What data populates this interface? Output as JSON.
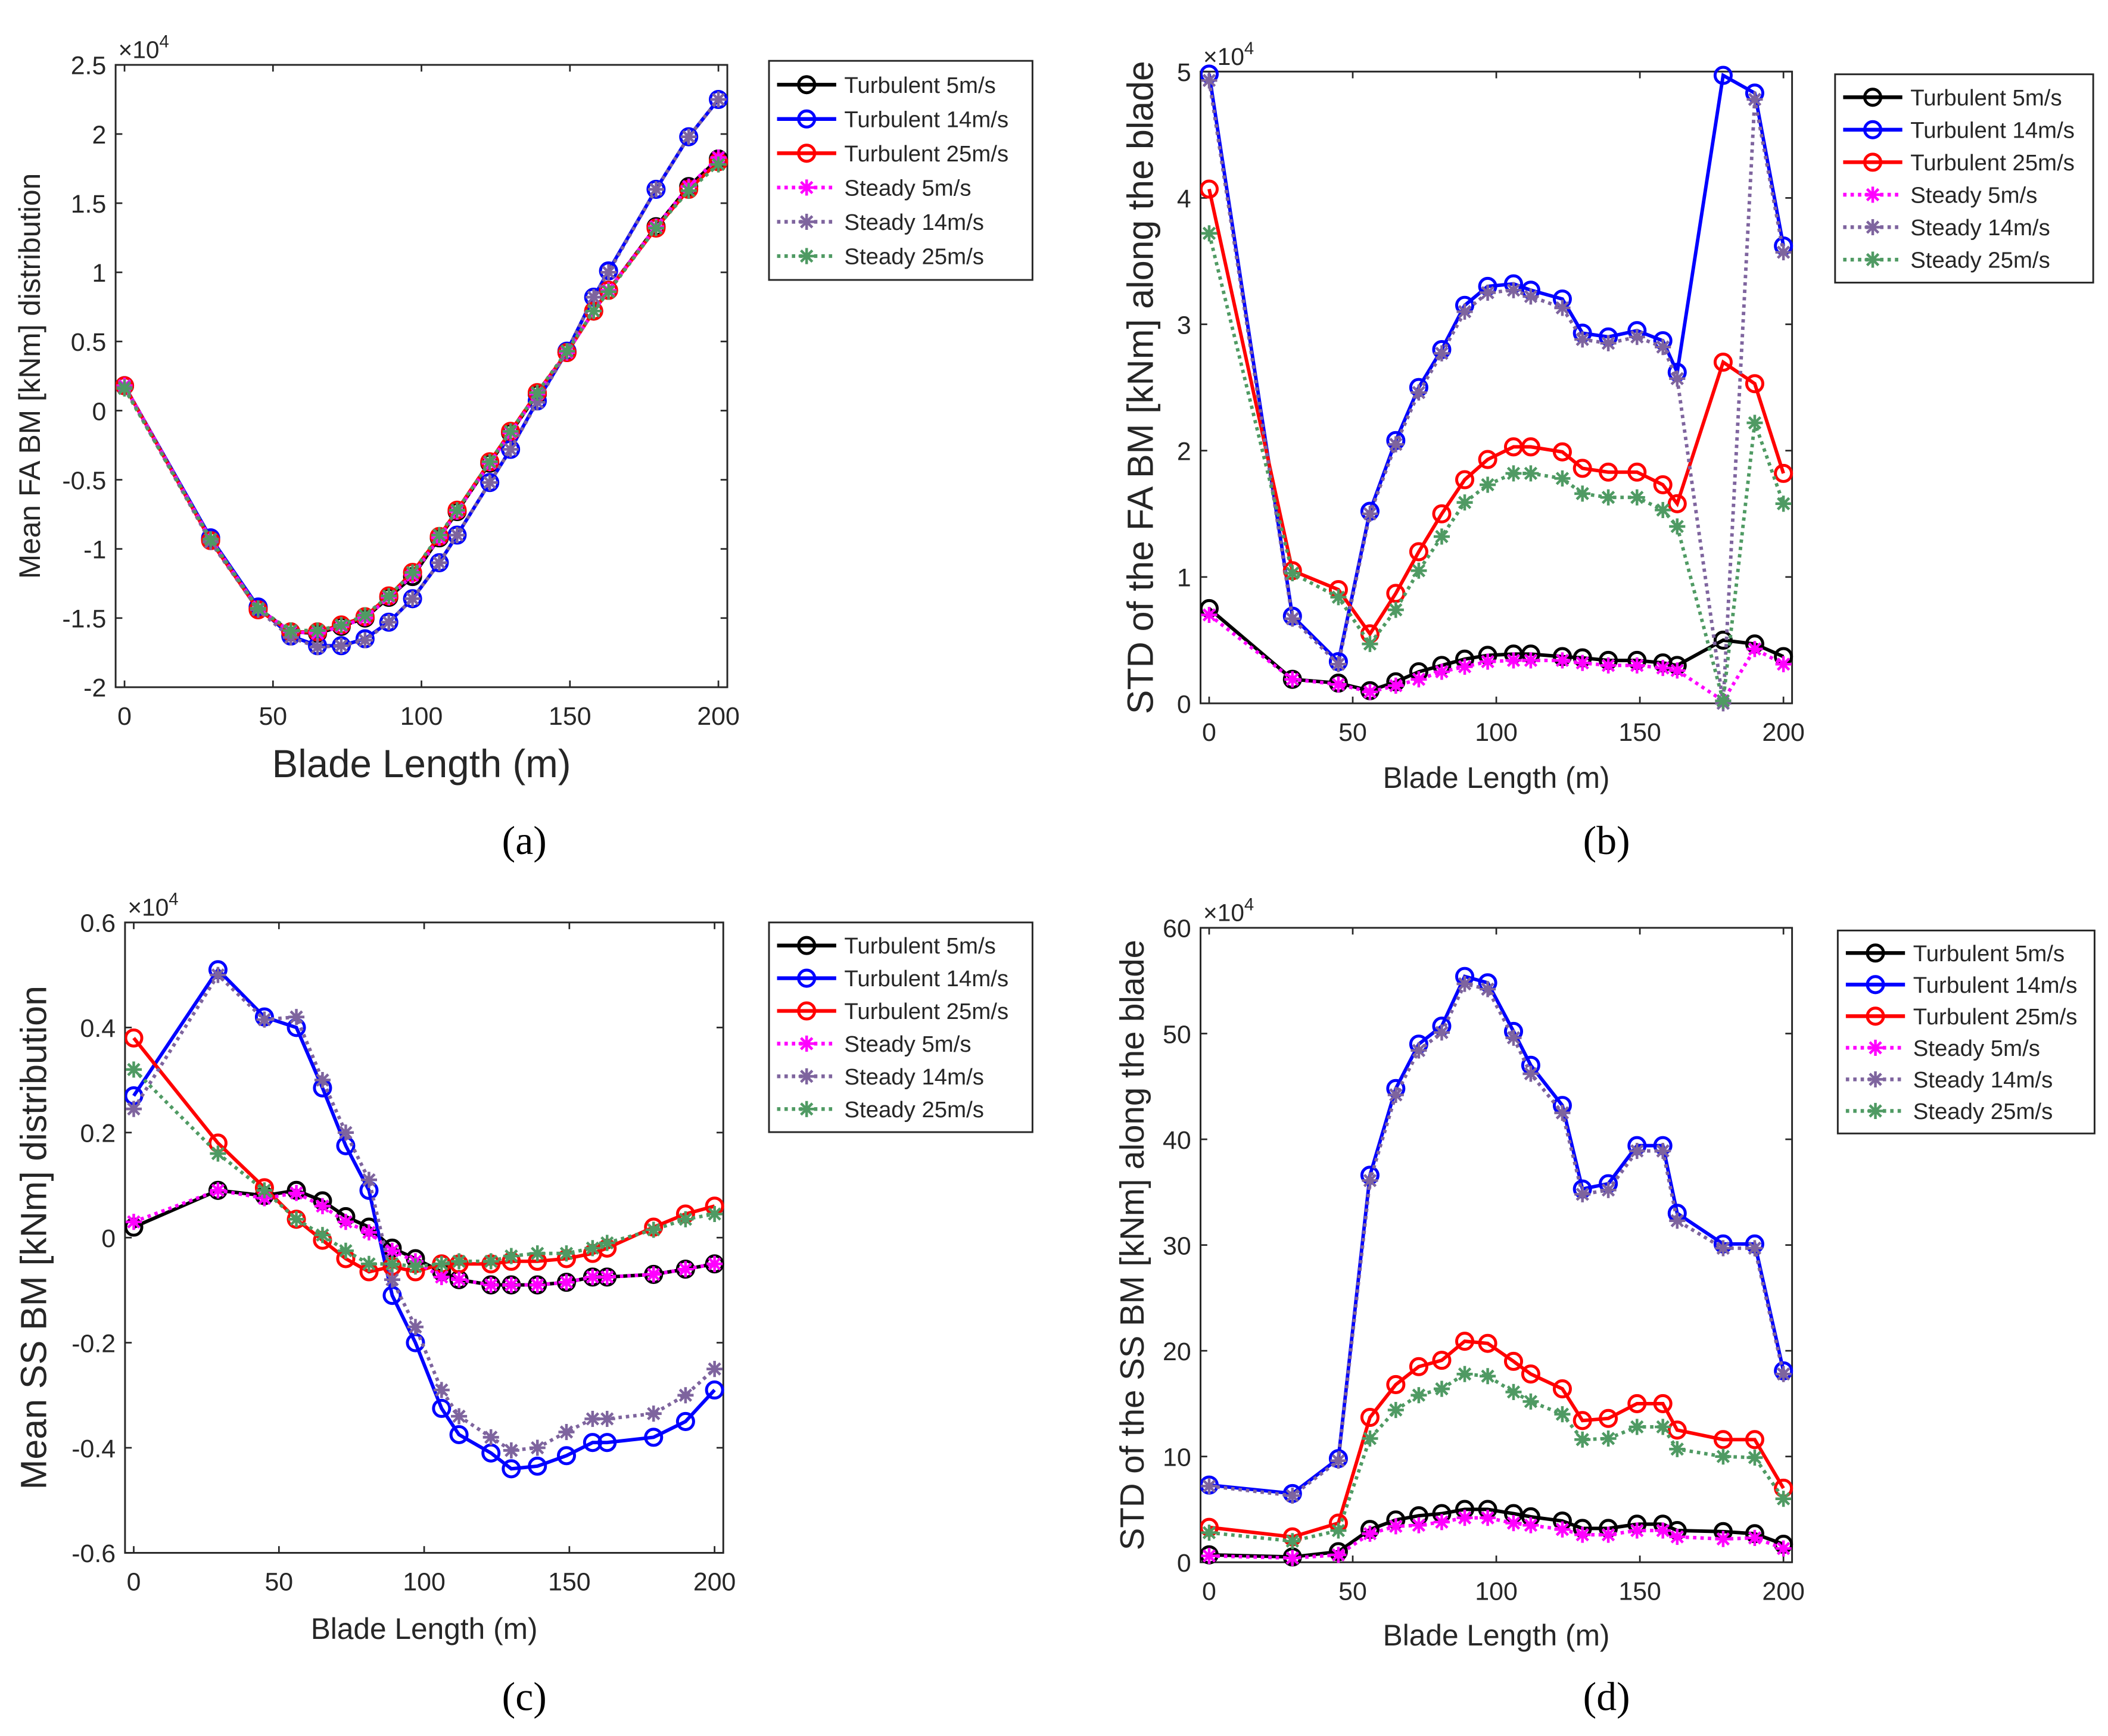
{
  "legend_entries": [
    "Turbulent 5m/s",
    "Turbulent 14m/s",
    "Turbulent 25m/s",
    "Steady 5m/s",
    "Steady 14m/s",
    "Steady 25m/s"
  ],
  "chart_data": [
    {
      "type": "line",
      "caption": "(a)",
      "title": "",
      "xlabel": "Blade Length (m)",
      "ylabel": "Mean FA BM [kNm] distribution",
      "exponent_base": "×10",
      "exponent_power": "4",
      "xlim": [
        -3,
        203
      ],
      "ylim": [
        -2,
        2.5
      ],
      "xticks": [
        0,
        50,
        100,
        150,
        200
      ],
      "xtick_labels": [
        "0",
        "50",
        "100",
        "150",
        "200"
      ],
      "yticks": [
        -2,
        -1.5,
        -1,
        -0.5,
        0,
        0.5,
        1,
        1.5,
        2,
        2.5
      ],
      "ytick_labels": [
        "-2",
        "-1.5",
        "-1",
        "-0.5",
        "0",
        "0.5",
        "1",
        "1.5",
        "2",
        "2.5"
      ],
      "legend_position": "outside-right-top",
      "grid": false,
      "x": [
        0,
        29,
        45,
        56,
        65,
        73,
        81,
        89,
        97,
        106,
        112,
        123,
        130,
        139,
        149,
        158,
        163,
        179,
        190,
        200
      ],
      "series": [
        {
          "name": "Turbulent 5m/s",
          "color": "#000000",
          "marker": "circle",
          "linestyle": "solid",
          "values": [
            0.18,
            -0.93,
            -1.43,
            -1.6,
            -1.61,
            -1.56,
            -1.5,
            -1.35,
            -1.2,
            -0.92,
            -0.73,
            -0.38,
            -0.16,
            0.12,
            0.42,
            0.72,
            0.87,
            1.33,
            1.62,
            1.82
          ]
        },
        {
          "name": "Turbulent 14m/s",
          "color": "#0000ff",
          "marker": "circle",
          "linestyle": "solid",
          "values": [
            0.18,
            -0.92,
            -1.42,
            -1.63,
            -1.7,
            -1.7,
            -1.65,
            -1.53,
            -1.36,
            -1.1,
            -0.9,
            -0.52,
            -0.28,
            0.07,
            0.43,
            0.82,
            1.01,
            1.6,
            1.98,
            2.25
          ]
        },
        {
          "name": "Turbulent 25m/s",
          "color": "#ff0000",
          "marker": "circle",
          "linestyle": "solid",
          "values": [
            0.18,
            -0.94,
            -1.44,
            -1.6,
            -1.6,
            -1.55,
            -1.49,
            -1.34,
            -1.17,
            -0.91,
            -0.72,
            -0.37,
            -0.15,
            0.13,
            0.42,
            0.72,
            0.87,
            1.32,
            1.6,
            1.8
          ]
        },
        {
          "name": "Steady 5m/s",
          "color": "#ff00ff",
          "marker": "asterisk",
          "linestyle": "dotted",
          "values": [
            0.18,
            -0.93,
            -1.43,
            -1.6,
            -1.61,
            -1.56,
            -1.5,
            -1.35,
            -1.19,
            -0.92,
            -0.73,
            -0.38,
            -0.16,
            0.12,
            0.42,
            0.72,
            0.87,
            1.33,
            1.62,
            1.83
          ]
        },
        {
          "name": "Steady 14m/s",
          "color": "#7e649e",
          "marker": "asterisk",
          "linestyle": "dotted",
          "values": [
            0.17,
            -0.95,
            -1.44,
            -1.64,
            -1.71,
            -1.7,
            -1.66,
            -1.53,
            -1.36,
            -1.1,
            -0.9,
            -0.52,
            -0.28,
            0.06,
            0.43,
            0.82,
            1.0,
            1.6,
            1.98,
            2.25
          ]
        },
        {
          "name": "Steady 25m/s",
          "color": "#4f9a63",
          "marker": "asterisk",
          "linestyle": "dotted",
          "values": [
            0.16,
            -0.93,
            -1.43,
            -1.59,
            -1.59,
            -1.55,
            -1.48,
            -1.34,
            -1.17,
            -0.9,
            -0.72,
            -0.37,
            -0.15,
            0.13,
            0.43,
            0.72,
            0.86,
            1.32,
            1.59,
            1.78
          ]
        }
      ]
    },
    {
      "type": "line",
      "caption": "(b)",
      "title": "",
      "xlabel": "Blade Length (m)",
      "ylabel": "STD of the FA BM [kNm] along the blade",
      "exponent_base": "×10",
      "exponent_power": "4",
      "xlim": [
        -3,
        203
      ],
      "ylim": [
        0,
        5
      ],
      "xticks": [
        0,
        50,
        100,
        150,
        200
      ],
      "xtick_labels": [
        "0",
        "50",
        "100",
        "150",
        "200"
      ],
      "yticks": [
        0,
        1,
        2,
        3,
        4,
        5
      ],
      "ytick_labels": [
        "0",
        "1",
        "2",
        "3",
        "4",
        "5"
      ],
      "legend_position": "outside-right-top",
      "grid": false,
      "x": [
        0,
        29,
        45,
        56,
        65,
        73,
        81,
        89,
        97,
        106,
        112,
        123,
        130,
        139,
        149,
        158,
        163,
        179,
        190,
        200
      ],
      "series": [
        {
          "name": "Turbulent 5m/s",
          "color": "#000000",
          "marker": "circle",
          "linestyle": "solid",
          "values": [
            0.75,
            0.19,
            0.16,
            0.1,
            0.17,
            0.25,
            0.3,
            0.35,
            0.38,
            0.39,
            0.39,
            0.37,
            0.36,
            0.34,
            0.34,
            0.32,
            0.3,
            0.5,
            0.47,
            0.37
          ]
        },
        {
          "name": "Turbulent 14m/s",
          "color": "#0000ff",
          "marker": "circle",
          "linestyle": "solid",
          "values": [
            4.98,
            0.69,
            0.33,
            1.52,
            2.08,
            2.5,
            2.8,
            3.15,
            3.3,
            3.32,
            3.27,
            3.2,
            2.93,
            2.9,
            2.95,
            2.87,
            2.62,
            4.97,
            4.83,
            3.62
          ]
        },
        {
          "name": "Turbulent 25m/s",
          "color": "#ff0000",
          "marker": "circle",
          "linestyle": "solid",
          "values": [
            4.07,
            1.05,
            0.9,
            0.55,
            0.87,
            1.2,
            1.5,
            1.77,
            1.93,
            2.03,
            2.03,
            1.99,
            1.86,
            1.83,
            1.83,
            1.73,
            1.58,
            2.7,
            2.53,
            1.82
          ]
        },
        {
          "name": "Steady 5m/s",
          "color": "#ff00ff",
          "marker": "asterisk",
          "linestyle": "dotted",
          "values": [
            0.7,
            0.19,
            0.15,
            0.09,
            0.14,
            0.19,
            0.25,
            0.29,
            0.33,
            0.34,
            0.34,
            0.34,
            0.32,
            0.3,
            0.3,
            0.28,
            0.26,
            0.02,
            0.43,
            0.31
          ]
        },
        {
          "name": "Steady 14m/s",
          "color": "#7e649e",
          "marker": "asterisk",
          "linestyle": "dotted",
          "values": [
            4.93,
            0.67,
            0.31,
            1.5,
            2.05,
            2.46,
            2.77,
            3.1,
            3.25,
            3.27,
            3.22,
            3.13,
            2.88,
            2.85,
            2.9,
            2.82,
            2.57,
            0.0,
            4.78,
            3.57
          ]
        },
        {
          "name": "Steady 25m/s",
          "color": "#4f9a63",
          "marker": "asterisk",
          "linestyle": "dotted",
          "values": [
            3.72,
            1.03,
            0.84,
            0.47,
            0.74,
            1.05,
            1.32,
            1.59,
            1.73,
            1.82,
            1.82,
            1.78,
            1.66,
            1.63,
            1.63,
            1.53,
            1.4,
            0.02,
            2.22,
            1.58
          ]
        }
      ]
    },
    {
      "type": "line",
      "caption": "(c)",
      "title": "",
      "xlabel": "Blade Length (m)",
      "ylabel": "Mean SS BM [kNm] distribution",
      "exponent_base": "×10",
      "exponent_power": "4",
      "xlim": [
        -3,
        203
      ],
      "ylim": [
        -0.6,
        0.6
      ],
      "xticks": [
        0,
        50,
        100,
        150,
        200
      ],
      "xtick_labels": [
        "0",
        "50",
        "100",
        "150",
        "200"
      ],
      "yticks": [
        -0.6,
        -0.4,
        -0.2,
        0,
        0.2,
        0.4,
        0.6
      ],
      "ytick_labels": [
        "-0.6",
        "-0.4",
        "-0.2",
        "0",
        "0.2",
        "0.4",
        "0.6"
      ],
      "legend_position": "outside-right-top",
      "grid": false,
      "x": [
        0,
        29,
        45,
        56,
        65,
        73,
        81,
        89,
        97,
        106,
        112,
        123,
        130,
        139,
        149,
        158,
        163,
        179,
        190,
        200
      ],
      "series": [
        {
          "name": "Turbulent 5m/s",
          "color": "#000000",
          "marker": "circle",
          "linestyle": "solid",
          "values": [
            0.02,
            0.09,
            0.08,
            0.09,
            0.07,
            0.04,
            0.02,
            -0.02,
            -0.04,
            -0.065,
            -0.08,
            -0.09,
            -0.09,
            -0.09,
            -0.085,
            -0.075,
            -0.075,
            -0.07,
            -0.06,
            -0.05
          ]
        },
        {
          "name": "Turbulent 14m/s",
          "color": "#0000ff",
          "marker": "circle",
          "linestyle": "solid",
          "values": [
            0.27,
            0.51,
            0.42,
            0.4,
            0.285,
            0.175,
            0.09,
            -0.11,
            -0.2,
            -0.325,
            -0.375,
            -0.41,
            -0.44,
            -0.435,
            -0.415,
            -0.39,
            -0.39,
            -0.38,
            -0.35,
            -0.29
          ]
        },
        {
          "name": "Turbulent 25m/s",
          "color": "#ff0000",
          "marker": "circle",
          "linestyle": "solid",
          "values": [
            0.38,
            0.18,
            0.095,
            0.035,
            -0.005,
            -0.04,
            -0.065,
            -0.055,
            -0.065,
            -0.05,
            -0.05,
            -0.05,
            -0.045,
            -0.045,
            -0.04,
            -0.03,
            -0.02,
            0.02,
            0.045,
            0.06
          ]
        },
        {
          "name": "Steady 5m/s",
          "color": "#ff00ff",
          "marker": "asterisk",
          "linestyle": "dotted",
          "values": [
            0.03,
            0.09,
            0.075,
            0.085,
            0.06,
            0.03,
            0.01,
            -0.025,
            -0.045,
            -0.075,
            -0.08,
            -0.09,
            -0.09,
            -0.09,
            -0.085,
            -0.075,
            -0.075,
            -0.07,
            -0.06,
            -0.05
          ]
        },
        {
          "name": "Steady 14m/s",
          "color": "#7e649e",
          "marker": "asterisk",
          "linestyle": "dotted",
          "values": [
            0.245,
            0.5,
            0.415,
            0.42,
            0.3,
            0.2,
            0.11,
            -0.08,
            -0.17,
            -0.29,
            -0.34,
            -0.38,
            -0.405,
            -0.4,
            -0.37,
            -0.345,
            -0.345,
            -0.335,
            -0.3,
            -0.25
          ]
        },
        {
          "name": "Steady 25m/s",
          "color": "#4f9a63",
          "marker": "asterisk",
          "linestyle": "dotted",
          "values": [
            0.32,
            0.16,
            0.09,
            0.035,
            0.005,
            -0.025,
            -0.05,
            -0.05,
            -0.055,
            -0.05,
            -0.045,
            -0.045,
            -0.035,
            -0.03,
            -0.03,
            -0.02,
            -0.01,
            0.015,
            0.035,
            0.045
          ]
        }
      ]
    },
    {
      "type": "line",
      "caption": "(d)",
      "title": "",
      "xlabel": "Blade Length (m)",
      "ylabel": "STD of the SS BM [kNm] along the blade",
      "exponent_base": "×10",
      "exponent_power": "4",
      "xlim": [
        -3,
        203
      ],
      "ylim": [
        0,
        60
      ],
      "xticks": [
        0,
        50,
        100,
        150,
        200
      ],
      "xtick_labels": [
        "0",
        "50",
        "100",
        "150",
        "200"
      ],
      "yticks": [
        0,
        10,
        20,
        30,
        40,
        50,
        60
      ],
      "ytick_labels": [
        "0",
        "10",
        "20",
        "30",
        "40",
        "50",
        "60"
      ],
      "legend_position": "outside-right-top",
      "grid": false,
      "x": [
        0,
        29,
        45,
        56,
        65,
        73,
        81,
        89,
        97,
        106,
        112,
        123,
        130,
        139,
        149,
        158,
        163,
        179,
        190,
        200
      ],
      "series": [
        {
          "name": "Turbulent 5m/s",
          "color": "#000000",
          "marker": "circle",
          "linestyle": "solid",
          "values": [
            0.7,
            0.5,
            1.0,
            3.1,
            4.0,
            4.4,
            4.6,
            5.0,
            5.0,
            4.6,
            4.3,
            3.9,
            3.2,
            3.2,
            3.6,
            3.6,
            3.0,
            2.9,
            2.7,
            1.7
          ]
        },
        {
          "name": "Turbulent 14m/s",
          "color": "#0000ff",
          "marker": "circle",
          "linestyle": "solid",
          "values": [
            7.3,
            6.5,
            9.8,
            36.6,
            44.8,
            49.0,
            50.7,
            55.4,
            54.8,
            50.2,
            47.0,
            43.2,
            35.3,
            35.8,
            39.4,
            39.4,
            33.0,
            30.1,
            30.1,
            18.1
          ]
        },
        {
          "name": "Turbulent 25m/s",
          "color": "#ff0000",
          "marker": "circle",
          "linestyle": "solid",
          "values": [
            3.3,
            2.4,
            3.7,
            13.7,
            16.8,
            18.5,
            19.1,
            20.9,
            20.7,
            19.0,
            17.8,
            16.4,
            13.4,
            13.6,
            15.0,
            15.0,
            12.5,
            11.6,
            11.6,
            7.0
          ]
        },
        {
          "name": "Steady 5m/s",
          "color": "#ff00ff",
          "marker": "asterisk",
          "linestyle": "dotted",
          "values": [
            0.6,
            0.4,
            0.7,
            2.7,
            3.4,
            3.5,
            3.8,
            4.2,
            4.2,
            3.7,
            3.5,
            3.1,
            2.6,
            2.6,
            3.0,
            3.0,
            2.4,
            2.2,
            2.3,
            1.3
          ]
        },
        {
          "name": "Steady 14m/s",
          "color": "#7e649e",
          "marker": "asterisk",
          "linestyle": "dotted",
          "values": [
            7.2,
            6.3,
            9.6,
            36.1,
            44.2,
            48.4,
            50.1,
            54.7,
            54.2,
            49.6,
            46.2,
            42.5,
            34.8,
            35.2,
            38.9,
            38.9,
            32.3,
            29.7,
            29.7,
            17.8
          ]
        },
        {
          "name": "Steady 25m/s",
          "color": "#4f9a63",
          "marker": "asterisk",
          "linestyle": "dotted",
          "values": [
            2.8,
            2.0,
            3.0,
            11.7,
            14.4,
            15.8,
            16.4,
            17.8,
            17.6,
            16.1,
            15.2,
            14.0,
            11.6,
            11.7,
            12.8,
            12.8,
            10.7,
            10.0,
            9.9,
            6.0
          ]
        }
      ]
    }
  ]
}
